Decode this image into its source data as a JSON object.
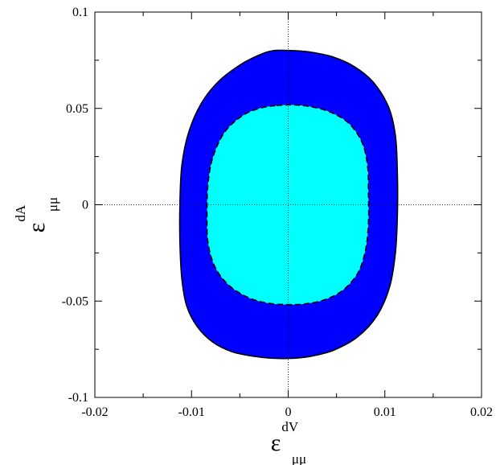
{
  "chart_data": {
    "type": "contour",
    "title": "",
    "xlabel": {
      "symbol": "ε",
      "superscript": "dV",
      "subscript": "μμ"
    },
    "ylabel": {
      "symbol": "ε",
      "superscript": "dA",
      "subscript": "μμ"
    },
    "xlim": [
      -0.02,
      0.02
    ],
    "ylim": [
      -0.1,
      0.1
    ],
    "x_ticks": [
      {
        "value": -0.02,
        "label": "-0.02"
      },
      {
        "value": -0.01,
        "label": "-0.01"
      },
      {
        "value": 0,
        "label": "0"
      },
      {
        "value": 0.01,
        "label": "0.01"
      },
      {
        "value": 0.02,
        "label": "0.02"
      }
    ],
    "y_ticks": [
      {
        "value": -0.1,
        "label": "-0.1"
      },
      {
        "value": -0.05,
        "label": "-0.05"
      },
      {
        "value": 0,
        "label": "0"
      },
      {
        "value": 0.05,
        "label": "0.05"
      },
      {
        "value": 0.1,
        "label": "0.1"
      }
    ],
    "reference_lines": {
      "x0": true,
      "y0": true
    },
    "regions": [
      {
        "fill": "#0000ff",
        "stroke": "#000000",
        "dashed": false,
        "points": [
          [
            -0.0015,
            0.08
          ],
          [
            0.0005,
            0.08
          ],
          [
            0.0022,
            0.0793
          ],
          [
            0.0045,
            0.0769
          ],
          [
            0.0068,
            0.0718
          ],
          [
            0.0088,
            0.0636
          ],
          [
            0.0104,
            0.0505
          ],
          [
            0.0111,
            0.0355
          ],
          [
            0.0113,
            0.0155
          ],
          [
            0.0113,
            -0.0045
          ],
          [
            0.0111,
            -0.0245
          ],
          [
            0.0105,
            -0.0425
          ],
          [
            0.0092,
            -0.0575
          ],
          [
            0.0072,
            -0.0685
          ],
          [
            0.0048,
            -0.0753
          ],
          [
            0.0025,
            -0.0785
          ],
          [
            0.0005,
            -0.0797
          ],
          [
            -0.0015,
            -0.0797
          ],
          [
            -0.0035,
            -0.0787
          ],
          [
            -0.0058,
            -0.0763
          ],
          [
            -0.0078,
            -0.0713
          ],
          [
            -0.0094,
            -0.0633
          ],
          [
            -0.0105,
            -0.0525
          ],
          [
            -0.011,
            -0.0385
          ],
          [
            -0.0112,
            -0.0195
          ],
          [
            -0.0112,
            0.0005
          ],
          [
            -0.011,
            0.0205
          ],
          [
            -0.0103,
            0.0375
          ],
          [
            -0.009,
            0.0525
          ],
          [
            -0.0072,
            0.064
          ],
          [
            -0.005,
            0.0725
          ],
          [
            -0.003,
            0.0777
          ]
        ]
      },
      {
        "fill": "#00ffff",
        "stroke": "#000000",
        "dashed": true,
        "points": [
          [
            -0.0012,
            0.0515
          ],
          [
            0.0005,
            0.0518
          ],
          [
            0.0022,
            0.051
          ],
          [
            0.0042,
            0.0484
          ],
          [
            0.0062,
            0.0426
          ],
          [
            0.0076,
            0.0328
          ],
          [
            0.0082,
            0.0205
          ],
          [
            0.0083,
            0.0055
          ],
          [
            0.0083,
            -0.0095
          ],
          [
            0.008,
            -0.0235
          ],
          [
            0.0072,
            -0.0355
          ],
          [
            0.0056,
            -0.0446
          ],
          [
            0.0036,
            -0.0496
          ],
          [
            0.0016,
            -0.0515
          ],
          [
            -0.0002,
            -0.0518
          ],
          [
            -0.0022,
            -0.051
          ],
          [
            -0.0042,
            -0.048
          ],
          [
            -0.0062,
            -0.0415
          ],
          [
            -0.0076,
            -0.032
          ],
          [
            -0.0083,
            -0.0195
          ],
          [
            -0.0084,
            -0.0045
          ],
          [
            -0.0083,
            0.0105
          ],
          [
            -0.0078,
            0.0245
          ],
          [
            -0.0066,
            0.0375
          ],
          [
            -0.0048,
            0.046
          ],
          [
            -0.003,
            0.05
          ]
        ]
      }
    ]
  }
}
